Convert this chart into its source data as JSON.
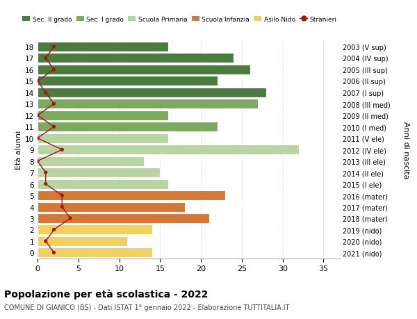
{
  "ages": [
    18,
    17,
    16,
    15,
    14,
    13,
    12,
    11,
    10,
    9,
    8,
    7,
    6,
    5,
    4,
    3,
    2,
    1,
    0
  ],
  "bar_values": [
    16,
    24,
    26,
    22,
    28,
    27,
    16,
    22,
    16,
    32,
    13,
    15,
    16,
    23,
    18,
    21,
    14,
    11,
    14
  ],
  "stranieri": [
    2,
    1,
    2,
    0,
    1,
    2,
    0,
    2,
    0,
    3,
    0,
    1,
    1,
    3,
    3,
    4,
    2,
    1,
    2
  ],
  "right_labels": [
    "2003 (V sup)",
    "2004 (IV sup)",
    "2005 (III sup)",
    "2006 (II sup)",
    "2007 (I sup)",
    "2008 (III med)",
    "2009 (II med)",
    "2010 (I med)",
    "2011 (V ele)",
    "2012 (IV ele)",
    "2013 (III ele)",
    "2014 (II ele)",
    "2015 (I ele)",
    "2016 (mater)",
    "2017 (mater)",
    "2018 (mater)",
    "2019 (nido)",
    "2020 (nido)",
    "2021 (nido)"
  ],
  "bar_colors": [
    "#4a7c3f",
    "#4a7c3f",
    "#4a7c3f",
    "#4a7c3f",
    "#4a7c3f",
    "#7da862",
    "#7da862",
    "#7da862",
    "#b8d4a0",
    "#b8d4a0",
    "#b8d4a0",
    "#b8d4a0",
    "#b8d4a0",
    "#d2793a",
    "#d2793a",
    "#d2793a",
    "#f0d060",
    "#f0d060",
    "#f0d060"
  ],
  "legend_labels": [
    "Sec. II grado",
    "Sec. I grado",
    "Scuola Primaria",
    "Scuola Infanzia",
    "Asilo Nido",
    "Stranieri"
  ],
  "legend_colors": [
    "#4a7c3f",
    "#7da862",
    "#b8d4a0",
    "#d2793a",
    "#f0d060",
    "#aa1111"
  ],
  "ylabel_left": "Età alunni",
  "ylabel_right": "Anni di nascita",
  "title": "Popolazione per età scolastica - 2022",
  "subtitle": "COMUNE DI GIANICO (BS) - Dati ISTAT 1° gennaio 2022 - Elaborazione TUTTITALIA.IT",
  "xlim": [
    0,
    37
  ],
  "bar_height": 0.85,
  "stranieri_color": "#aa1111",
  "grid_color": "#d0d0d0",
  "bg_color": "#ffffff"
}
